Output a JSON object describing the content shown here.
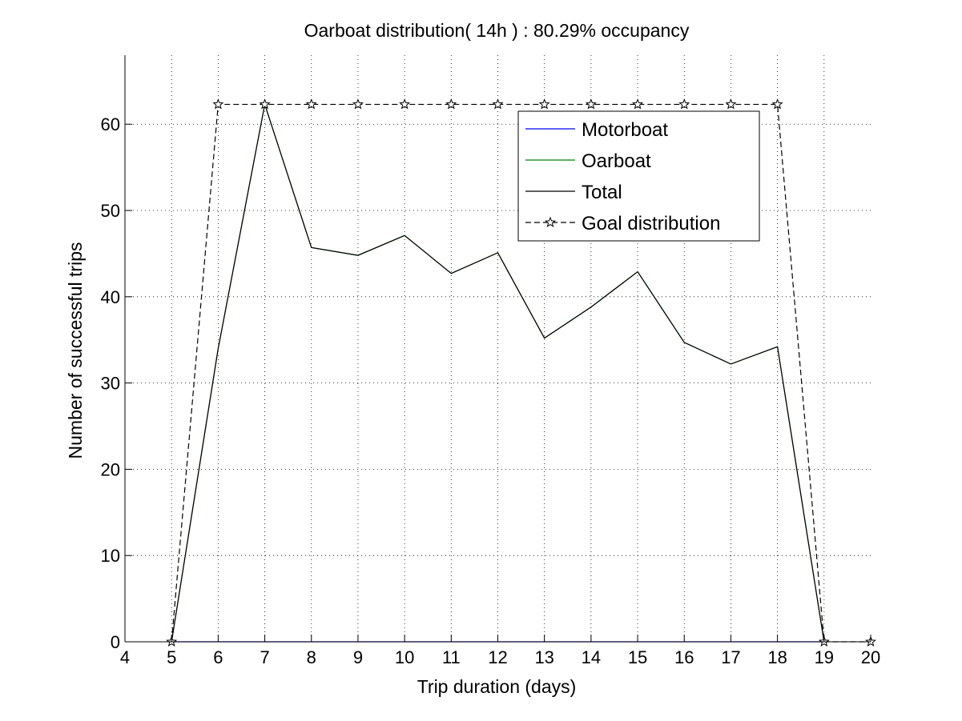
{
  "chart_data": {
    "type": "line",
    "title": "Oarboat distribution( 14h ) : 80.29% occupancy",
    "xlabel": "Trip duration (days)",
    "ylabel": "Number of successful trips",
    "xlim": [
      4,
      20
    ],
    "ylim": [
      0,
      68
    ],
    "xticks": [
      4,
      5,
      6,
      7,
      8,
      9,
      10,
      11,
      12,
      13,
      14,
      15,
      16,
      17,
      18,
      19,
      20
    ],
    "yticks": [
      0,
      10,
      20,
      30,
      40,
      50,
      60
    ],
    "grid": true,
    "legend_position": "top-right",
    "series": [
      {
        "name": "Motorboat",
        "color": "#0000ff",
        "style": "solid",
        "marker": "none",
        "x": [
          5,
          6,
          7,
          8,
          9,
          10,
          11,
          12,
          13,
          14,
          15,
          16,
          17,
          18,
          19
        ],
        "y": [
          0,
          0,
          0,
          0,
          0,
          0,
          0,
          0,
          0,
          0,
          0,
          0,
          0,
          0,
          0
        ]
      },
      {
        "name": "Oarboat",
        "color": "#008000",
        "style": "solid",
        "marker": "none",
        "x": [
          5,
          6,
          7,
          8,
          9,
          10,
          11,
          12,
          13,
          14,
          15,
          16,
          17,
          18,
          19
        ],
        "y": [
          0,
          34,
          62.3,
          45.7,
          44.8,
          47.1,
          42.7,
          45.1,
          35.2,
          38.8,
          42.9,
          34.7,
          32.2,
          34.2,
          0
        ]
      },
      {
        "name": "Total",
        "color": "#000000",
        "style": "solid",
        "marker": "none",
        "x": [
          5,
          6,
          7,
          8,
          9,
          10,
          11,
          12,
          13,
          14,
          15,
          16,
          17,
          18,
          19
        ],
        "y": [
          0,
          34,
          62.3,
          45.7,
          44.8,
          47.1,
          42.7,
          45.1,
          35.2,
          38.8,
          42.9,
          34.7,
          32.2,
          34.2,
          0
        ]
      },
      {
        "name": "Goal distribution",
        "color": "#000000",
        "style": "dashed",
        "marker": "star",
        "x": [
          5,
          6,
          7,
          8,
          9,
          10,
          11,
          12,
          13,
          14,
          15,
          16,
          17,
          18,
          19,
          20
        ],
        "y": [
          0,
          62.3,
          62.3,
          62.3,
          62.3,
          62.3,
          62.3,
          62.3,
          62.3,
          62.3,
          62.3,
          62.3,
          62.3,
          62.3,
          0,
          0
        ]
      }
    ]
  }
}
